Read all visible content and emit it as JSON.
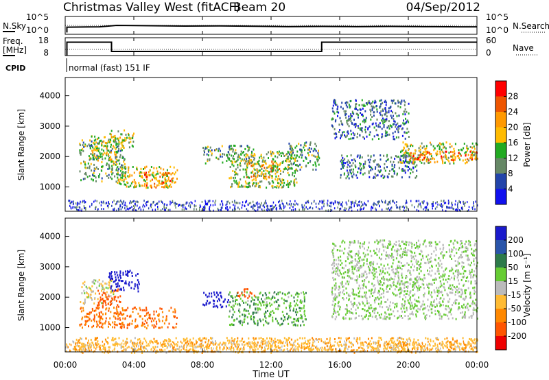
{
  "header": {
    "station": "Christmas Valley West (fitACF)",
    "beam": "Beam 20",
    "date": "04/Sep/2012"
  },
  "noise_panel": {
    "left_label": "N.Sky",
    "right_label": "N.Search",
    "left_ticks": [
      "10^5",
      "10^0"
    ],
    "right_ticks": [
      "10^5",
      "10^0"
    ]
  },
  "freq_panel": {
    "left_label_line1": "Freq.",
    "left_label_line2": "[MHz]",
    "right_label": "Nave",
    "left_ticks": [
      "18",
      "8"
    ],
    "right_ticks": [
      "60",
      "0"
    ]
  },
  "cpid": {
    "label": "CPID",
    "value": "normal (fast) 151 IF"
  },
  "power_panel": {
    "ylabel": "Slant Range [km]",
    "colorbar_label": "Power [dB]",
    "colorbar_ticks": [
      "28",
      "24",
      "20",
      "16",
      "12",
      "8",
      "4"
    ],
    "colors": [
      "#ff0000",
      "#ee5500",
      "#ff9900",
      "#ffbb00",
      "#22aa22",
      "#668866",
      "#2244aa",
      "#1111ee"
    ]
  },
  "velocity_panel": {
    "ylabel": "Slant Range [km]",
    "colorbar_label": "Velocity [m s⁻¹]",
    "colorbar_ticks": [
      "200",
      "100",
      "50",
      "15",
      "-15",
      "-50",
      "-100",
      "-200"
    ],
    "colors": [
      "#1a1acc",
      "#2a55aa",
      "#2d7a4a",
      "#66cc33",
      "#bbbbbb",
      "#ffbb33",
      "#ff8800",
      "#ff5500",
      "#ee0000"
    ]
  },
  "xaxis": {
    "label": "Time UT",
    "ticks": [
      "00:00",
      "04:00",
      "08:00",
      "12:00",
      "16:00",
      "20:00",
      "00:00"
    ]
  },
  "chart_data": [
    {
      "type": "line",
      "name": "noise",
      "xlabel": "",
      "ylabel": "N.Sky",
      "xlim": [
        0,
        24
      ],
      "series": [
        {
          "name": "N.Sky",
          "x": [
            0.1,
            0.1,
            2,
            3,
            5,
            7,
            9,
            11,
            13,
            15,
            17,
            19,
            21,
            23,
            24
          ],
          "y": [
            0.1,
            0.4,
            0.42,
            0.5,
            0.48,
            0.46,
            0.47,
            0.45,
            0.43,
            0.44,
            0.43,
            0.44,
            0.43,
            0.42,
            0.42
          ]
        }
      ]
    },
    {
      "type": "line",
      "name": "frequency",
      "xlabel": "",
      "ylabel": "Freq. [MHz]",
      "ylim": [
        8,
        18
      ],
      "xlim": [
        0,
        24
      ],
      "series": [
        {
          "name": "Freq.",
          "x": [
            0.1,
            0.1,
            2.7,
            2.7,
            14.95,
            14.95,
            24
          ],
          "y": [
            8,
            15.5,
            15.5,
            10.3,
            10.3,
            15.5,
            15.5
          ]
        }
      ]
    },
    {
      "type": "heatmap",
      "name": "power",
      "xlabel": "Time UT",
      "ylabel": "Slant Range [km]",
      "xlim": [
        0,
        24
      ],
      "ylim": [
        200,
        4600
      ],
      "zlabel": "Power [dB]",
      "zlim": [
        0,
        32
      ],
      "features": [
        {
          "t": [
            0.8,
            3.5
          ],
          "range": [
            1200,
            2600
          ],
          "power": 14
        },
        {
          "t": [
            1.5,
            3.0
          ],
          "range": [
            1900,
            2700
          ],
          "power": 20
        },
        {
          "t": [
            2.5,
            4.0
          ],
          "range": [
            2300,
            2900
          ],
          "power": 18
        },
        {
          "t": [
            3.0,
            6.5
          ],
          "range": [
            1000,
            1700
          ],
          "power": 20
        },
        {
          "t": [
            4.5,
            6.2
          ],
          "range": [
            1000,
            1500
          ],
          "power": 26
        },
        {
          "t": [
            8.0,
            11.0
          ],
          "range": [
            1800,
            2400
          ],
          "power": 14
        },
        {
          "t": [
            9.5,
            13.5
          ],
          "range": [
            1000,
            2200
          ],
          "power": 16
        },
        {
          "t": [
            10.5,
            12.5
          ],
          "range": [
            1300,
            1900
          ],
          "power": 22
        },
        {
          "t": [
            12.8,
            14.8
          ],
          "range": [
            1600,
            2500
          ],
          "power": 13
        },
        {
          "t": [
            15.5,
            20.0
          ],
          "range": [
            2600,
            3900
          ],
          "power": 10
        },
        {
          "t": [
            16.0,
            20.5
          ],
          "range": [
            1300,
            2100
          ],
          "power": 10
        },
        {
          "t": [
            19.5,
            24.0
          ],
          "range": [
            1800,
            2500
          ],
          "power": 18
        },
        {
          "t": [
            20.0,
            24.0
          ],
          "range": [
            1900,
            2200
          ],
          "power": 26
        }
      ]
    },
    {
      "type": "heatmap",
      "name": "velocity",
      "xlabel": "Time UT",
      "ylabel": "Slant Range [km]",
      "xlim": [
        0,
        24
      ],
      "ylim": [
        200,
        4600
      ],
      "zlabel": "Velocity [m s⁻¹]",
      "zlim": [
        -200,
        200
      ],
      "features": [
        {
          "t": [
            0.8,
            2.8
          ],
          "range": [
            1800,
            2600
          ],
          "velocity": -20
        },
        {
          "t": [
            1.8,
            3.2
          ],
          "range": [
            1700,
            2300
          ],
          "velocity": -200
        },
        {
          "t": [
            2.5,
            4.3
          ],
          "range": [
            2200,
            2900
          ],
          "velocity": 200
        },
        {
          "t": [
            0.8,
            6.5
          ],
          "range": [
            1000,
            1700
          ],
          "velocity": -150
        },
        {
          "t": [
            8.0,
            9.5
          ],
          "range": [
            1700,
            2200
          ],
          "velocity": 200
        },
        {
          "t": [
            9.5,
            14.0
          ],
          "range": [
            1100,
            2200
          ],
          "velocity": 25
        },
        {
          "t": [
            10.0,
            11.0
          ],
          "range": [
            2000,
            2300
          ],
          "velocity": -200
        },
        {
          "t": [
            15.5,
            24.0
          ],
          "range": [
            1300,
            3900
          ],
          "velocity": 0
        },
        {
          "t": [
            0.5,
            24.0
          ],
          "range": [
            200,
            700
          ],
          "velocity": -60
        }
      ]
    }
  ]
}
